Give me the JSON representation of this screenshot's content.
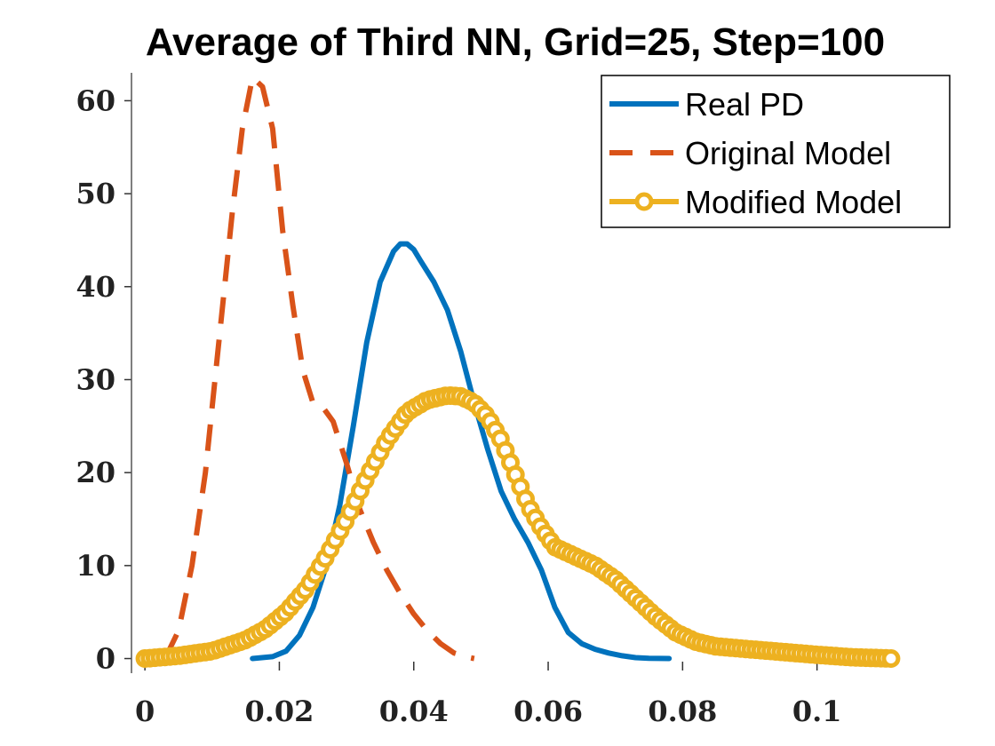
{
  "chart_data": {
    "type": "line",
    "title": "Average of Third NN, Grid=25, Step=100",
    "xlabel": "",
    "ylabel": "",
    "xlim": [
      -0.002,
      0.113
    ],
    "ylim": [
      -1,
      63
    ],
    "xticks": [
      0,
      0.02,
      0.04,
      0.06,
      0.08,
      0.1
    ],
    "xtick_labels": [
      "0",
      "0.02",
      "0.04",
      "0.06",
      "0.08",
      "0.1"
    ],
    "yticks": [
      0,
      10,
      20,
      30,
      40,
      50,
      60
    ],
    "ytick_labels": [
      "0",
      "10",
      "20",
      "30",
      "40",
      "50",
      "60"
    ],
    "grid": false,
    "legend_position": "top-right",
    "series": [
      {
        "name": "Real PD",
        "color": "#0072BD",
        "style": "solid",
        "x": [
          0.016,
          0.019,
          0.021,
          0.023,
          0.025,
          0.027,
          0.029,
          0.031,
          0.033,
          0.035,
          0.037,
          0.038,
          0.039,
          0.04,
          0.041,
          0.043,
          0.045,
          0.047,
          0.049,
          0.051,
          0.053,
          0.055,
          0.057,
          0.059,
          0.061,
          0.063,
          0.065,
          0.067,
          0.069,
          0.071,
          0.073,
          0.075,
          0.078
        ],
        "values": [
          0,
          0.2,
          0.8,
          2.5,
          5.5,
          10,
          16.5,
          25,
          34,
          40.5,
          43.8,
          44.6,
          44.6,
          44,
          42.8,
          40.5,
          37.5,
          33,
          27.5,
          22.5,
          18,
          15,
          12.5,
          9.5,
          5.5,
          2.8,
          1.6,
          1.0,
          0.6,
          0.3,
          0.1,
          0.03,
          0
        ]
      },
      {
        "name": "Original Model",
        "color": "#D95319",
        "style": "dashed",
        "x": [
          0.003,
          0.005,
          0.007,
          0.009,
          0.011,
          0.013,
          0.0145,
          0.016,
          0.0175,
          0.019,
          0.0205,
          0.022,
          0.0235,
          0.025,
          0.0265,
          0.028,
          0.03,
          0.032,
          0.034,
          0.036,
          0.038,
          0.04,
          0.042,
          0.044,
          0.046,
          0.048,
          0.049
        ],
        "values": [
          0,
          3,
          10,
          20,
          34,
          48,
          57,
          62.5,
          61.5,
          57,
          46,
          38,
          31,
          27.5,
          27,
          25.5,
          21,
          16,
          12.5,
          9.5,
          7,
          4.8,
          3,
          1.6,
          0.6,
          0.15,
          0
        ]
      },
      {
        "name": "Modified Model",
        "color": "#EDB120",
        "style": "solid-circle",
        "x": [
          0,
          0.005,
          0.01,
          0.015,
          0.018,
          0.021,
          0.024,
          0.027,
          0.03,
          0.033,
          0.036,
          0.039,
          0.042,
          0.045,
          0.047,
          0.049,
          0.051,
          0.053,
          0.055,
          0.057,
          0.059,
          0.061,
          0.064,
          0.067,
          0.07,
          0.073,
          0.076,
          0.079,
          0.082,
          0.085,
          0.09,
          0.095,
          0.1,
          0.105,
          0.111
        ],
        "values": [
          0,
          0.3,
          0.8,
          2,
          3.2,
          5,
          7.5,
          11,
          15,
          19.5,
          23.5,
          26.5,
          27.8,
          28.3,
          28.2,
          27.5,
          26,
          23.5,
          20,
          16.5,
          14,
          12,
          11,
          10,
          8.5,
          6.5,
          4.5,
          2.8,
          1.8,
          1.3,
          1.0,
          0.7,
          0.4,
          0.15,
          0
        ]
      }
    ]
  }
}
